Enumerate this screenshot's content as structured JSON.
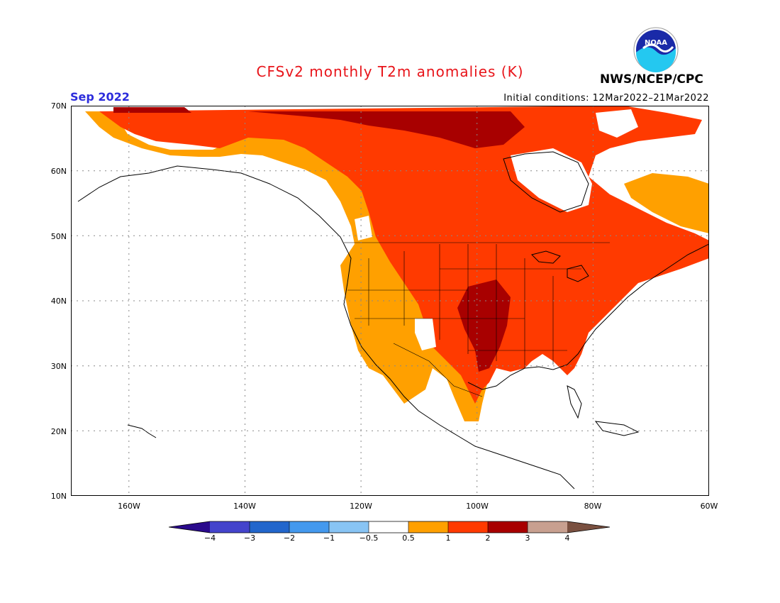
{
  "title": "CFSv2 monthly T2m anomalies (K)",
  "valid_date": "Sep 2022",
  "initial_conditions": "Initial conditions: 12Mar2022–21Mar2022",
  "agency": "NWS/NCEP/CPC",
  "logo_text": "NOAA",
  "map_extent": {
    "lon_min": -170,
    "lon_max": -60,
    "lat_min": 10,
    "lat_max": 70
  },
  "lat_ticks": [
    "70N",
    "60N",
    "50N",
    "40N",
    "30N",
    "20N",
    "10N"
  ],
  "lon_ticks": [
    "160W",
    "140W",
    "120W",
    "100W",
    "80W",
    "60W"
  ],
  "colorbar": {
    "labels": [
      "−4",
      "−3",
      "−2",
      "−1",
      "−0.5",
      "0.5",
      "1",
      "2",
      "3",
      "4"
    ],
    "colors": [
      "#2a0a8c",
      "#4444cc",
      "#2266cc",
      "#4499ee",
      "#88c4f4",
      "#ffffff",
      "#ffa000",
      "#ff3a00",
      "#a80000",
      "#c8a090",
      "#7a5040"
    ]
  }
}
